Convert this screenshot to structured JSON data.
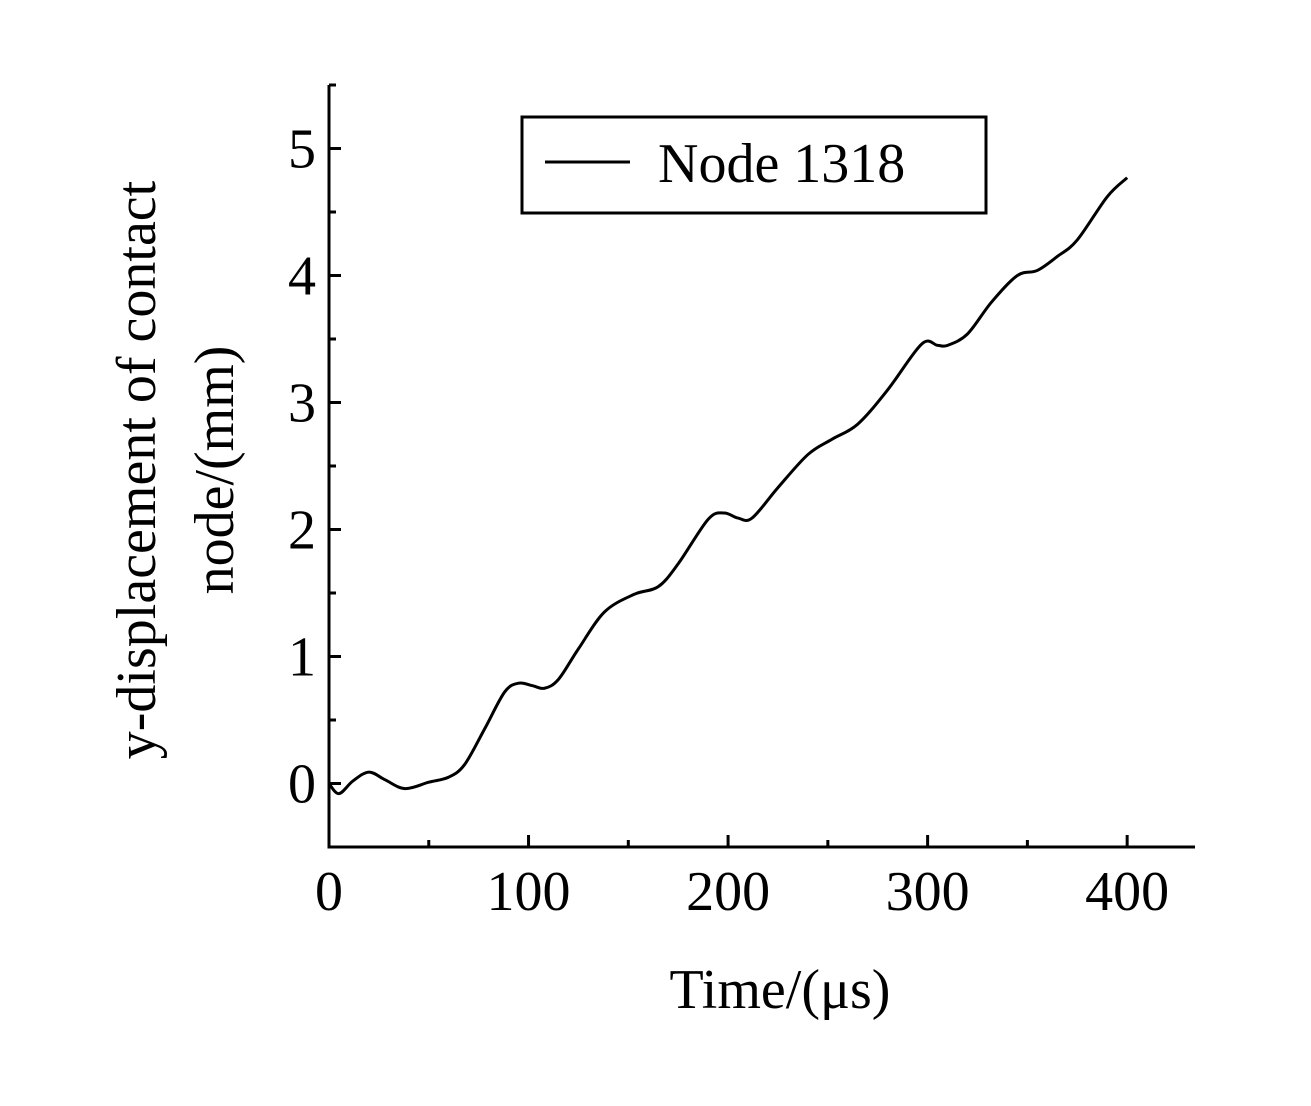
{
  "chart_data": {
    "type": "line",
    "title": "",
    "xlabel": "Time/(μs)",
    "ylabel_lines": [
      "y-displacement of contact",
      "node/(mm)"
    ],
    "xlim": [
      0,
      434
    ],
    "ylim": [
      -0.5,
      5.5
    ],
    "xticks": [
      0,
      100,
      200,
      300,
      400
    ],
    "yticks": [
      0,
      1,
      2,
      3,
      4,
      5
    ],
    "xminor_step": 50,
    "yminor_step": 0.5,
    "grid": false,
    "legend_position": "top-center",
    "line_color": "#000000",
    "series": [
      {
        "name": "Node 1318",
        "x": [
          0,
          5,
          12,
          20,
          28,
          38,
          50,
          60,
          68,
          78,
          88,
          95,
          102,
          108,
          115,
          125,
          138,
          153,
          165,
          175,
          190,
          198,
          205,
          212,
          225,
          240,
          252,
          265,
          280,
          297,
          305,
          310,
          320,
          332,
          345,
          355,
          365,
          375,
          390,
          400
        ],
        "y": [
          0.0,
          -0.08,
          0.02,
          0.09,
          0.03,
          -0.04,
          0.01,
          0.05,
          0.15,
          0.43,
          0.72,
          0.79,
          0.77,
          0.75,
          0.82,
          1.06,
          1.35,
          1.49,
          1.55,
          1.73,
          2.08,
          2.13,
          2.09,
          2.09,
          2.33,
          2.59,
          2.71,
          2.83,
          3.1,
          3.46,
          3.45,
          3.45,
          3.54,
          3.79,
          4.0,
          4.04,
          4.15,
          4.28,
          4.62,
          4.77
        ]
      }
    ]
  }
}
